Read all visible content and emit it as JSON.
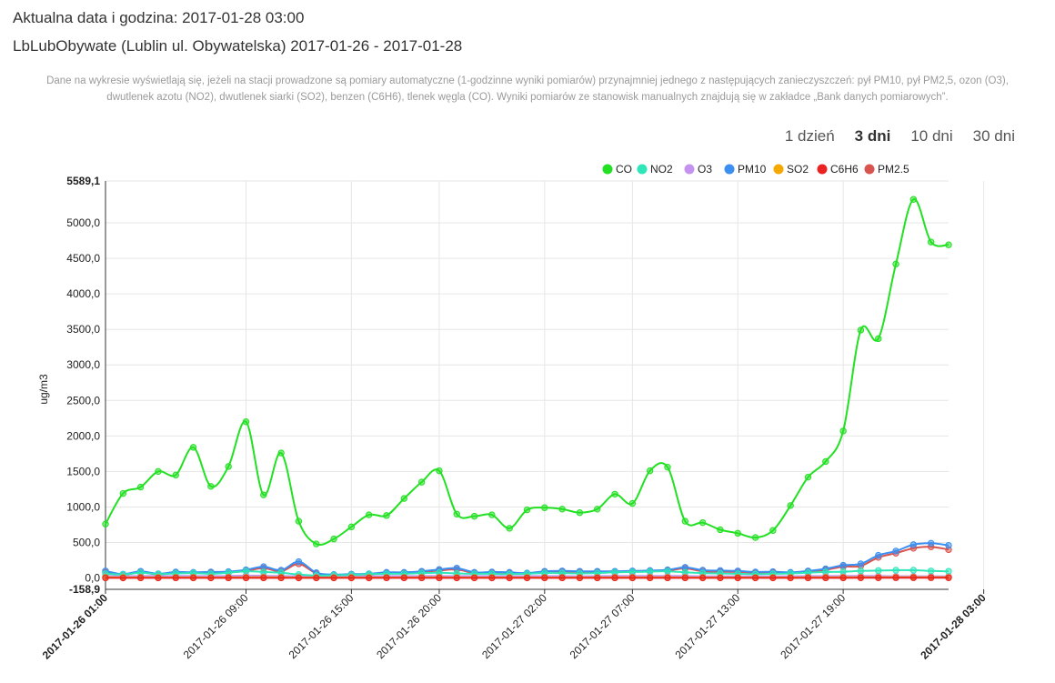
{
  "header": {
    "current_datetime": "Aktualna data i godzina: 2017-01-28 03:00",
    "station_title": "LbLubObywate (Lublin ul. Obywatelska) 2017-01-26 - 2017-01-28"
  },
  "notice": "Dane na wykresie wyświetlają się, jeżeli na stacji prowadzone są pomiary automatyczne (1-godzinne wyniki pomiarów) przynajmniej jednego z następujących zanieczyszczeń: pył PM10, pył PM2,5, ozon (O3), dwutlenek azotu (NO2), dwutlenek siarki (SO2), benzen (C6H6), tlenek węgla (CO). Wyniki pomiarów ze stanowisk manualnych znajdują się w zakładce „Bank danych pomiarowych”.",
  "range_tabs": [
    {
      "label": "1 dzień",
      "active": false
    },
    {
      "label": "3 dni",
      "active": true
    },
    {
      "label": "10 dni",
      "active": false
    },
    {
      "label": "30 dni",
      "active": false
    }
  ],
  "chart_data": {
    "type": "line",
    "ylabel": "ug/m3",
    "ylim": [
      -158.9,
      5589.1
    ],
    "y_ticks": [
      "-158,9",
      "0,0",
      "500,0",
      "1000,0",
      "1500,0",
      "2000,0",
      "2500,0",
      "3000,0",
      "3500,0",
      "4000,0",
      "4500,0",
      "5000,0",
      "5589,1"
    ],
    "x_tick_labels": [
      "2017-01-26 01:00",
      "2017-01-26 09:00",
      "2017-01-26 15:00",
      "2017-01-26 20:00",
      "2017-01-27 02:00",
      "2017-01-27 07:00",
      "2017-01-27 13:00",
      "2017-01-27 19:00",
      "2017-01-28 03:00"
    ],
    "x_tick_index": [
      0,
      8,
      14,
      19,
      25,
      30,
      36,
      42,
      50
    ],
    "grid": true,
    "legend_position": "top-right",
    "series": [
      {
        "name": "CO",
        "color": "#22e022",
        "values": [
          760,
          1190,
          1280,
          1500,
          1450,
          1840,
          1290,
          1570,
          2200,
          1170,
          1760,
          800,
          480,
          550,
          720,
          890,
          880,
          1120,
          1350,
          1510,
          900,
          870,
          890,
          700,
          960,
          990,
          970,
          920,
          970,
          1180,
          1050,
          1510,
          1560,
          800,
          780,
          680,
          630,
          570,
          670,
          1020,
          1420,
          1640,
          2070,
          3490,
          3370,
          4420,
          5330,
          4730,
          4690
        ]
      },
      {
        "name": "NO2",
        "color": "#2ee6b8",
        "values": [
          60,
          50,
          75,
          55,
          65,
          70,
          60,
          75,
          95,
          85,
          75,
          50,
          35,
          40,
          45,
          55,
          60,
          60,
          70,
          75,
          65,
          60,
          60,
          55,
          60,
          70,
          70,
          65,
          70,
          80,
          85,
          90,
          95,
          80,
          70,
          65,
          60,
          55,
          60,
          65,
          75,
          85,
          90,
          100,
          105,
          110,
          110,
          100,
          95
        ]
      },
      {
        "name": "O3",
        "color": "#c592f0",
        "values": [
          30,
          25,
          30,
          28,
          30,
          30,
          28,
          30,
          35,
          32,
          30,
          25,
          20,
          22,
          25,
          25,
          28,
          28,
          30,
          30,
          28,
          28,
          28,
          25,
          28,
          28,
          28,
          26,
          28,
          30,
          30,
          30,
          30,
          28,
          26,
          25,
          25,
          24,
          25,
          26,
          28,
          28,
          30,
          30,
          28,
          26,
          25,
          25,
          24
        ]
      },
      {
        "name": "PM10",
        "color": "#3a8ff0",
        "values": [
          100,
          55,
          95,
          60,
          85,
          80,
          85,
          90,
          115,
          160,
          110,
          230,
          75,
          50,
          55,
          60,
          80,
          80,
          95,
          120,
          140,
          80,
          85,
          80,
          70,
          95,
          100,
          95,
          95,
          95,
          100,
          105,
          115,
          150,
          110,
          105,
          100,
          85,
          90,
          80,
          100,
          130,
          180,
          200,
          320,
          380,
          470,
          490,
          460
        ]
      },
      {
        "name": "SO2",
        "color": "#f5a800",
        "values": [
          10,
          8,
          9,
          8,
          9,
          9,
          8,
          9,
          10,
          10,
          9,
          8,
          7,
          7,
          8,
          8,
          8,
          8,
          9,
          9,
          8,
          8,
          8,
          8,
          8,
          8,
          8,
          8,
          8,
          9,
          9,
          9,
          9,
          8,
          8,
          8,
          8,
          7,
          8,
          8,
          9,
          9,
          10,
          10,
          10,
          11,
          11,
          10,
          10
        ]
      },
      {
        "name": "C6H6",
        "color": "#ea2222",
        "values": [
          3,
          2,
          3,
          2,
          3,
          3,
          2,
          3,
          3,
          3,
          3,
          2,
          2,
          2,
          2,
          2,
          3,
          3,
          3,
          3,
          2,
          2,
          2,
          2,
          2,
          3,
          3,
          2,
          2,
          3,
          3,
          3,
          3,
          3,
          2,
          2,
          2,
          2,
          2,
          2,
          3,
          3,
          3,
          4,
          4,
          5,
          5,
          5,
          4
        ]
      },
      {
        "name": "PM2.5",
        "color": "#d9534f",
        "values": [
          80,
          45,
          80,
          50,
          75,
          70,
          75,
          80,
          100,
          140,
          95,
          200,
          65,
          40,
          45,
          50,
          70,
          70,
          85,
          105,
          120,
          70,
          75,
          70,
          60,
          85,
          90,
          85,
          85,
          85,
          90,
          95,
          105,
          135,
          95,
          90,
          85,
          75,
          80,
          70,
          85,
          115,
          160,
          170,
          290,
          350,
          420,
          440,
          400
        ]
      }
    ]
  }
}
